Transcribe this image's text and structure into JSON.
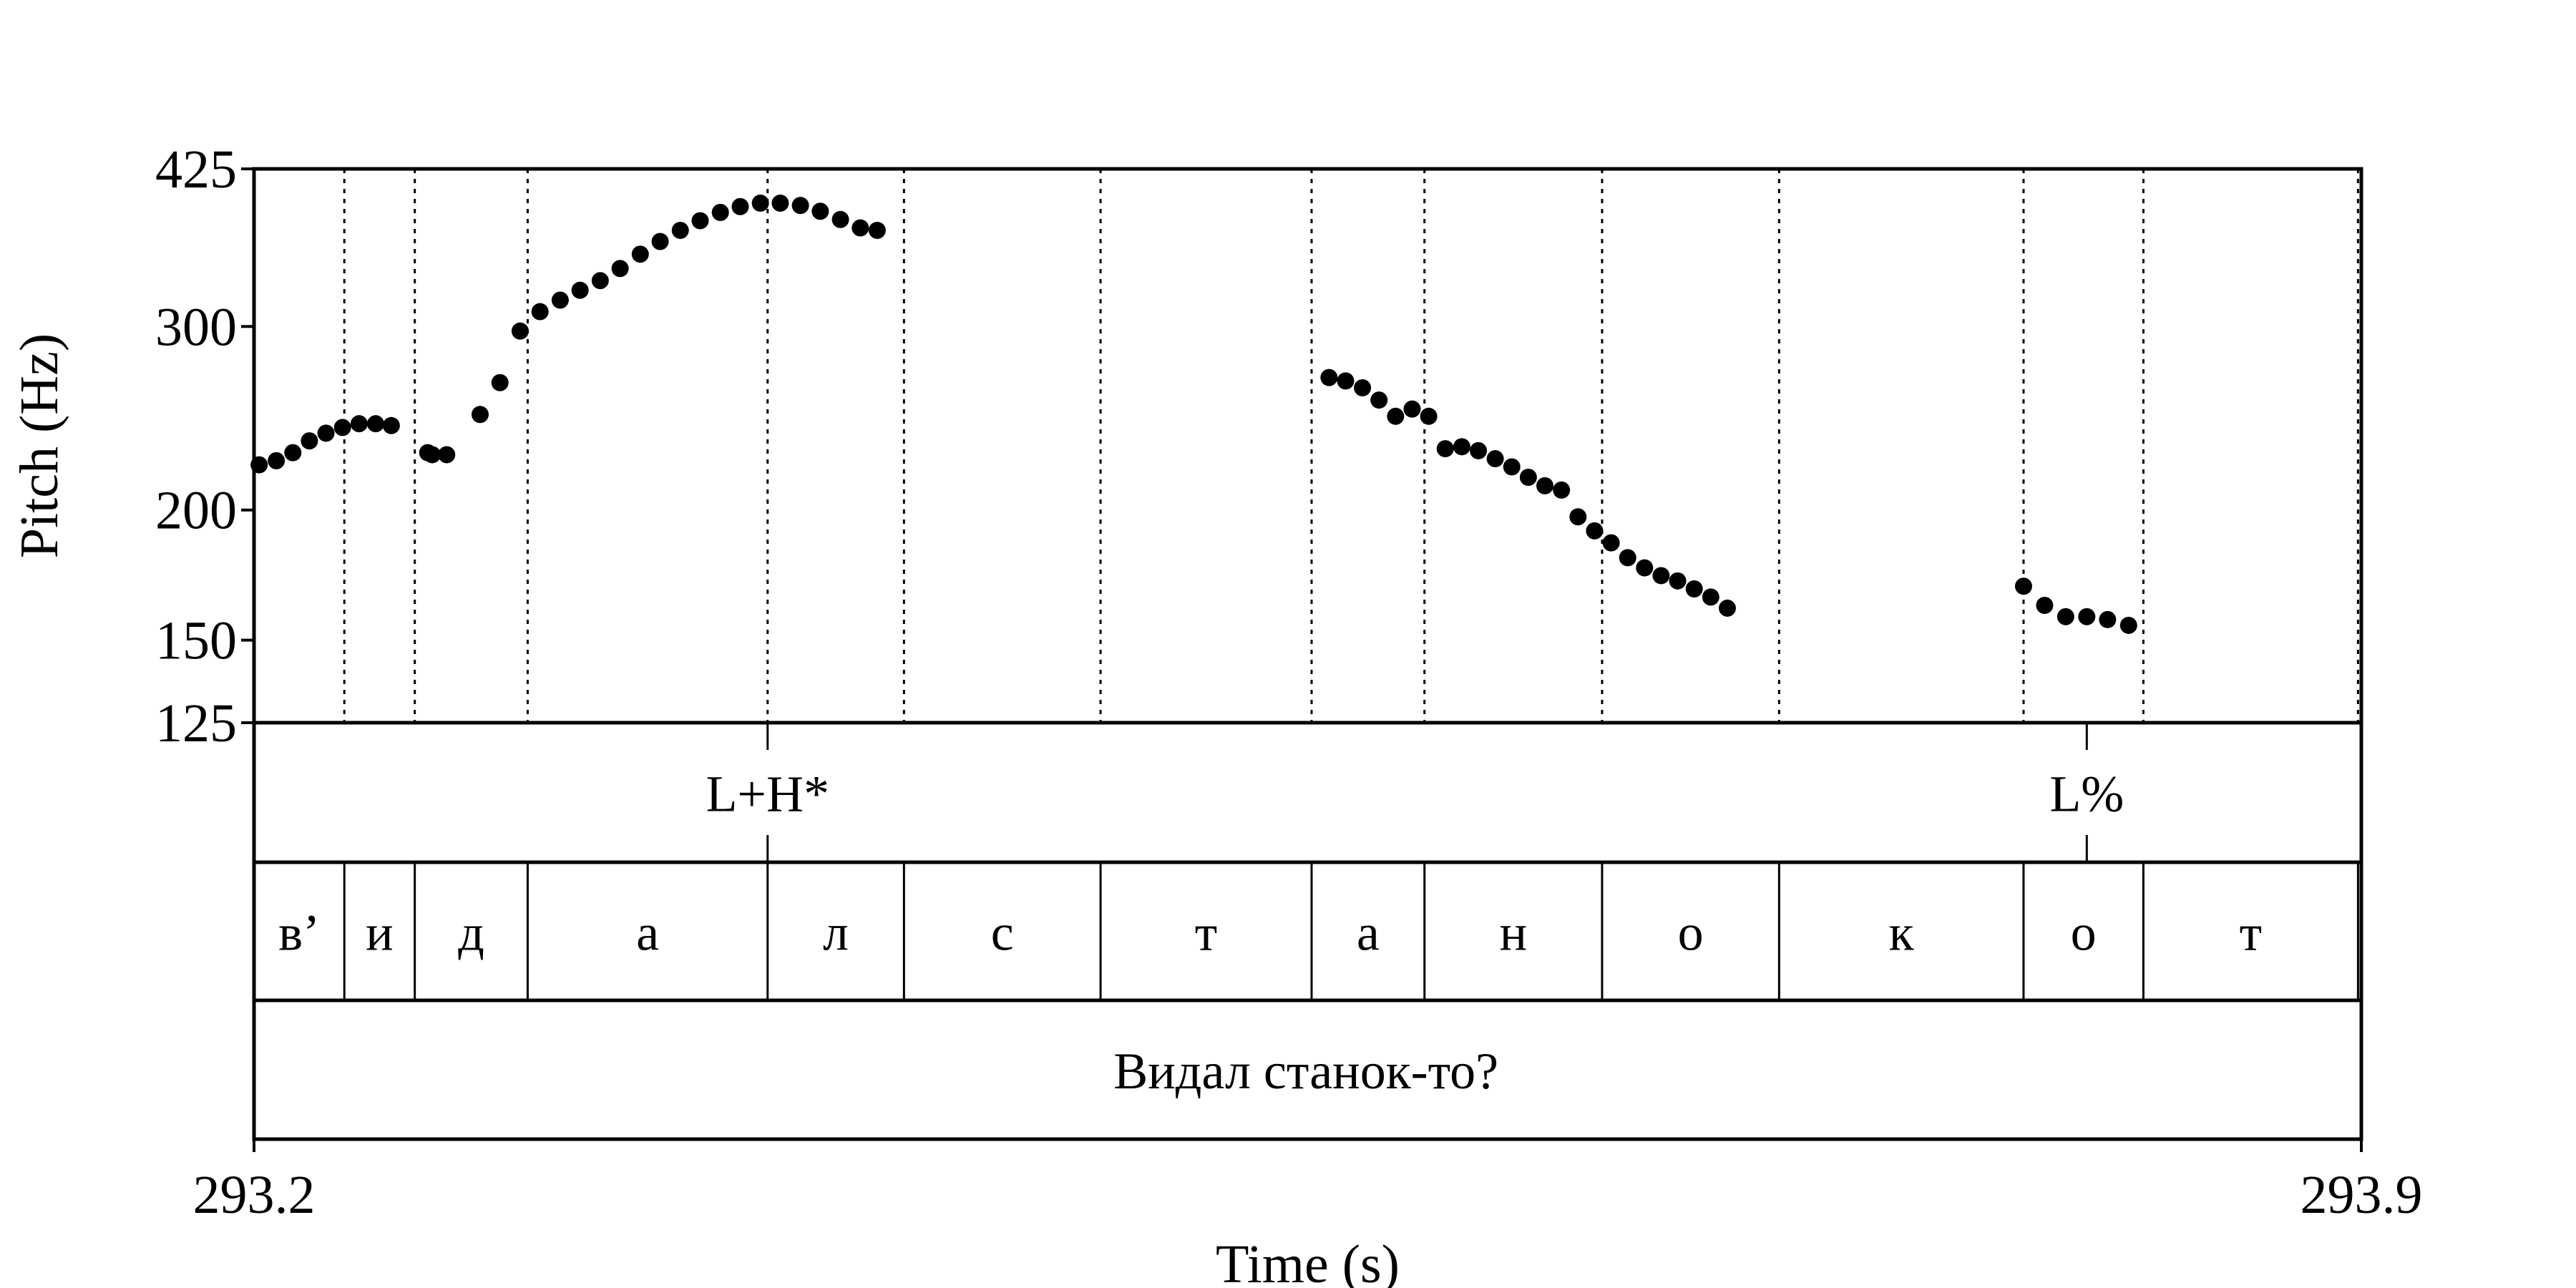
{
  "chart_data": {
    "type": "scatter",
    "xlabel": "Time (s)",
    "ylabel": "Pitch (Hz)",
    "xlim": [
      293.2,
      293.9
    ],
    "ylim": [
      125,
      425
    ],
    "y_scale": "log",
    "x_ticks": [
      "293.2",
      "293.9"
    ],
    "y_ticks": [
      {
        "value": 125,
        "label": "125"
      },
      {
        "value": 150,
        "label": "150"
      },
      {
        "value": 200,
        "label": "200"
      },
      {
        "value": 300,
        "label": "300"
      },
      {
        "value": 425,
        "label": "425"
      }
    ],
    "segment_boundaries": [
      293.23,
      293.2534,
      293.2909,
      293.3706,
      293.4159,
      293.4812,
      293.5513,
      293.5888,
      293.6478,
      293.7066,
      293.7878,
      293.8276,
      293.8989
    ],
    "tones": [
      {
        "label": "L+H*",
        "time": 293.3706
      },
      {
        "label": "L%",
        "time": 293.8088
      }
    ],
    "segments": [
      {
        "label": "в’",
        "start": 293.2,
        "end": 293.23
      },
      {
        "label": "и",
        "start": 293.23,
        "end": 293.2534
      },
      {
        "label": "д",
        "start": 293.2534,
        "end": 293.2909
      },
      {
        "label": "а",
        "start": 293.2909,
        "end": 293.3706
      },
      {
        "label": "л",
        "start": 293.3706,
        "end": 293.4159
      },
      {
        "label": "с",
        "start": 293.4159,
        "end": 293.4812
      },
      {
        "label": "т",
        "start": 293.4812,
        "end": 293.5513
      },
      {
        "label": "а",
        "start": 293.5513,
        "end": 293.5888
      },
      {
        "label": "н",
        "start": 293.5888,
        "end": 293.6478
      },
      {
        "label": "о",
        "start": 293.6478,
        "end": 293.7066
      },
      {
        "label": "к",
        "start": 293.7066,
        "end": 293.7878
      },
      {
        "label": "о",
        "start": 293.7878,
        "end": 293.8276
      },
      {
        "label": "т",
        "start": 293.8276,
        "end": 293.8989
      }
    ],
    "sentence": {
      "label": "Видал станок-то?",
      "start": 293.2,
      "end": 293.8989
    },
    "points": [
      [
        293.2017,
        221
      ],
      [
        293.2074,
        223
      ],
      [
        293.2129,
        227
      ],
      [
        293.2184,
        233
      ],
      [
        293.2239,
        237
      ],
      [
        293.2294,
        240
      ],
      [
        293.2349,
        242
      ],
      [
        293.2404,
        242
      ],
      [
        293.2456,
        241
      ],
      [
        293.2577,
        227
      ],
      [
        293.2592,
        226
      ],
      [
        293.264,
        226
      ],
      [
        293.2751,
        247
      ],
      [
        293.2817,
        265
      ],
      [
        293.2884,
        297
      ],
      [
        293.295,
        310
      ],
      [
        293.3017,
        318
      ],
      [
        293.3083,
        325
      ],
      [
        293.315,
        332
      ],
      [
        293.3216,
        341
      ],
      [
        293.3283,
        352
      ],
      [
        293.3349,
        362
      ],
      [
        293.3416,
        371
      ],
      [
        293.3482,
        379
      ],
      [
        293.3549,
        386
      ],
      [
        293.3615,
        391
      ],
      [
        293.3682,
        394
      ],
      [
        293.3748,
        394
      ],
      [
        293.3815,
        392
      ],
      [
        293.3881,
        387
      ],
      [
        293.3948,
        380
      ],
      [
        293.4014,
        373
      ],
      [
        293.407,
        371
      ],
      [
        293.5571,
        268
      ],
      [
        293.5626,
        266
      ],
      [
        293.5682,
        262
      ],
      [
        293.5737,
        255
      ],
      [
        293.5792,
        246
      ],
      [
        293.5847,
        250
      ],
      [
        293.5902,
        246
      ],
      [
        293.5957,
        229
      ],
      [
        293.6012,
        230
      ],
      [
        293.6067,
        228
      ],
      [
        293.6123,
        224
      ],
      [
        293.6178,
        220
      ],
      [
        293.6233,
        215
      ],
      [
        293.6288,
        211
      ],
      [
        293.6343,
        209
      ],
      [
        293.6398,
        197
      ],
      [
        293.6453,
        191
      ],
      [
        293.6508,
        186
      ],
      [
        293.6563,
        180
      ],
      [
        293.6619,
        176
      ],
      [
        293.6674,
        173
      ],
      [
        293.6729,
        171
      ],
      [
        293.6784,
        168
      ],
      [
        293.6839,
        165
      ],
      [
        293.6894,
        161
      ],
      [
        293.7878,
        169
      ],
      [
        293.7948,
        162
      ],
      [
        293.8018,
        158
      ],
      [
        293.8088,
        158
      ],
      [
        293.8157,
        157
      ],
      [
        293.8227,
        155
      ]
    ]
  }
}
